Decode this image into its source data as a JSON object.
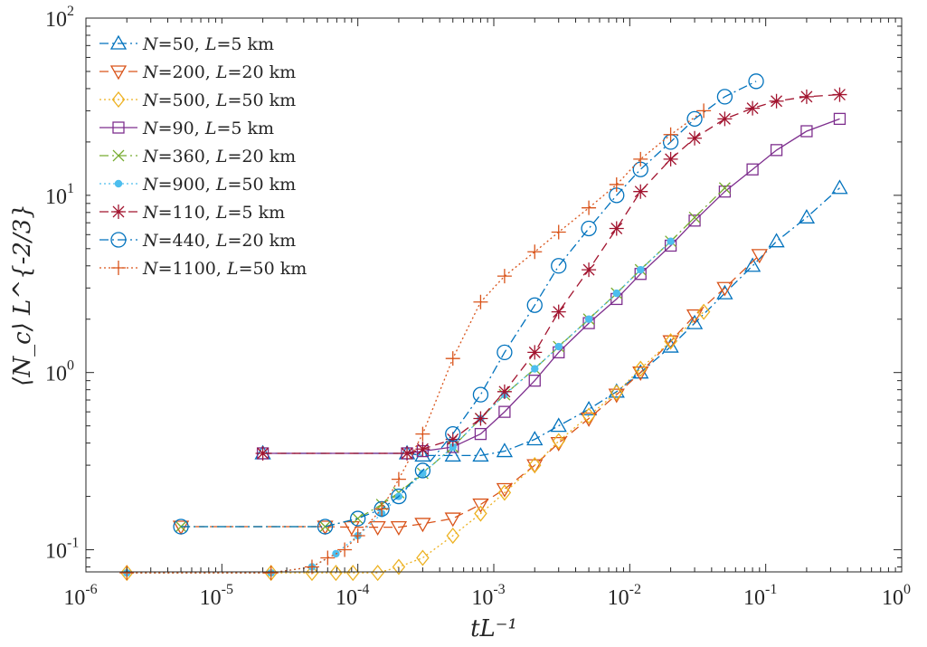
{
  "chart_data": {
    "type": "scatter",
    "title": "",
    "xlabel": "tL⁻¹",
    "ylabel": "⟨N_c⟩ L^{-2/3}",
    "xscale": "log",
    "yscale": "log",
    "xlim": [
      1e-06,
      1
    ],
    "ylim": [
      0.075,
      100
    ],
    "grid": false,
    "legend_position": "top-left",
    "x_ticks": [
      {
        "base": "10",
        "exp": "-6",
        "value": 1e-06
      },
      {
        "base": "10",
        "exp": "-5",
        "value": 1e-05
      },
      {
        "base": "10",
        "exp": "-4",
        "value": 0.0001
      },
      {
        "base": "10",
        "exp": "-3",
        "value": 0.001
      },
      {
        "base": "10",
        "exp": "-2",
        "value": 0.01
      },
      {
        "base": "10",
        "exp": "-1",
        "value": 0.1
      },
      {
        "base": "10",
        "exp": "0",
        "value": 1
      }
    ],
    "y_ticks": [
      {
        "label": "10",
        "exp": "-1",
        "value": 0.1
      },
      {
        "label": "10",
        "exp": "0",
        "value": 1
      },
      {
        "label": "10",
        "exp": "1",
        "value": 10
      },
      {
        "label": "10",
        "exp": "2",
        "value": 100
      }
    ],
    "series": [
      {
        "name": "N=50, L=5 km",
        "legend_parts": [
          "N",
          "=50, ",
          "L",
          "=5 km"
        ],
        "color": "#0072BD",
        "marker": "triangle-up",
        "line": "dash-dot",
        "x": [
          2e-05,
          0.00023,
          0.0003,
          0.0005,
          0.0008,
          0.0012,
          0.002,
          0.003,
          0.005,
          0.008,
          0.012,
          0.02,
          0.03,
          0.05,
          0.08,
          0.12,
          0.2,
          0.35
        ],
        "y": [
          0.35,
          0.35,
          0.34,
          0.34,
          0.34,
          0.36,
          0.42,
          0.5,
          0.62,
          0.78,
          1.0,
          1.4,
          1.9,
          2.8,
          4.0,
          5.5,
          7.5,
          11
        ]
      },
      {
        "name": "N=200, L=20 km",
        "legend_parts": [
          "N",
          "=200, ",
          "L",
          "=20 km"
        ],
        "color": "#D95319",
        "marker": "triangle-down",
        "line": "dashed",
        "x": [
          5e-06,
          5.75e-05,
          9e-05,
          0.00014,
          0.0002,
          0.0003,
          0.0005,
          0.0008,
          0.0012,
          0.002,
          0.003,
          0.005,
          0.008,
          0.012,
          0.02,
          0.03,
          0.05,
          0.09
        ],
        "y": [
          0.135,
          0.135,
          0.134,
          0.134,
          0.134,
          0.14,
          0.15,
          0.18,
          0.22,
          0.3,
          0.4,
          0.55,
          0.75,
          1.0,
          1.5,
          2.1,
          3.0,
          4.6
        ]
      },
      {
        "name": "N=500, L=50 km",
        "legend_parts": [
          "N",
          "=500, ",
          "L",
          "=50 km"
        ],
        "color": "#EDB120",
        "marker": "diamond",
        "line": "dotted",
        "x": [
          2e-06,
          2.3e-05,
          4.6e-05,
          6.9e-05,
          9.2e-05,
          0.00014,
          0.0002,
          0.0003,
          0.0005,
          0.0008,
          0.0012,
          0.002,
          0.003,
          0.005,
          0.008,
          0.012,
          0.02,
          0.035
        ],
        "y": [
          0.074,
          0.074,
          0.074,
          0.074,
          0.074,
          0.074,
          0.08,
          0.09,
          0.12,
          0.16,
          0.21,
          0.3,
          0.41,
          0.57,
          0.77,
          1.05,
          1.5,
          2.2
        ]
      },
      {
        "name": "N=90, L=5 km",
        "legend_parts": [
          "N",
          "=90, ",
          "L",
          "=5 km"
        ],
        "color": "#7E2F8E",
        "marker": "square",
        "line": "solid",
        "x": [
          2e-05,
          0.00023,
          0.0003,
          0.0005,
          0.0008,
          0.0012,
          0.002,
          0.003,
          0.005,
          0.008,
          0.012,
          0.02,
          0.03,
          0.05,
          0.08,
          0.12,
          0.2,
          0.35
        ],
        "y": [
          0.35,
          0.35,
          0.36,
          0.38,
          0.45,
          0.6,
          0.9,
          1.3,
          1.9,
          2.6,
          3.6,
          5.2,
          7.2,
          10.5,
          14,
          18,
          23,
          27
        ]
      },
      {
        "name": "N=360, L=20 km",
        "legend_parts": [
          "N",
          "=360, ",
          "L",
          "=20 km"
        ],
        "color": "#77AC30",
        "marker": "x",
        "line": "dash-dot",
        "x": [
          5e-06,
          5.75e-05,
          0.0001,
          0.00015,
          0.0002,
          0.0003,
          0.0005,
          0.0008,
          0.0012,
          0.002,
          0.003,
          0.005,
          0.008,
          0.012,
          0.02,
          0.03,
          0.05
        ],
        "y": [
          0.135,
          0.135,
          0.15,
          0.18,
          0.21,
          0.27,
          0.38,
          0.55,
          0.75,
          1.05,
          1.4,
          2.0,
          2.8,
          3.8,
          5.5,
          7.5,
          11
        ]
      },
      {
        "name": "N=900, L=50 km",
        "legend_parts": [
          "N",
          "=900, ",
          "L",
          "=50 km"
        ],
        "color": "#4DBEEE",
        "marker": "dot",
        "line": "dotted",
        "x": [
          2e-06,
          2.3e-05,
          4.6e-05,
          6.9e-05,
          0.0001,
          0.00015,
          0.0002,
          0.0003,
          0.0005,
          0.0008,
          0.0012,
          0.002,
          0.003,
          0.005,
          0.008,
          0.012,
          0.02
        ],
        "y": [
          0.074,
          0.074,
          0.08,
          0.095,
          0.12,
          0.16,
          0.2,
          0.27,
          0.38,
          0.55,
          0.75,
          1.05,
          1.4,
          2.0,
          2.8,
          3.8,
          5.5
        ]
      },
      {
        "name": "N=110, L=5 km",
        "legend_parts": [
          "N",
          "=110, ",
          "L",
          "=5 km"
        ],
        "color": "#A2142F",
        "marker": "asterisk",
        "line": "dashed",
        "x": [
          2e-05,
          0.00023,
          0.0003,
          0.0005,
          0.0008,
          0.0012,
          0.002,
          0.003,
          0.005,
          0.008,
          0.012,
          0.02,
          0.03,
          0.05,
          0.08,
          0.12,
          0.2,
          0.35
        ],
        "y": [
          0.35,
          0.35,
          0.37,
          0.42,
          0.55,
          0.78,
          1.3,
          2.2,
          3.8,
          6.5,
          10.5,
          16,
          21,
          27,
          31,
          34,
          36,
          37
        ]
      },
      {
        "name": "N=440, L=20 km",
        "legend_parts": [
          "N",
          "=440, ",
          "L",
          "=20 km"
        ],
        "color": "#0072BD",
        "marker": "circle",
        "line": "dash-dot",
        "x": [
          5e-06,
          5.75e-05,
          0.0001,
          0.00015,
          0.0002,
          0.0003,
          0.0005,
          0.0008,
          0.0012,
          0.002,
          0.003,
          0.005,
          0.008,
          0.012,
          0.02,
          0.03,
          0.05,
          0.085
        ],
        "y": [
          0.135,
          0.135,
          0.15,
          0.17,
          0.2,
          0.28,
          0.45,
          0.75,
          1.3,
          2.4,
          4.0,
          6.5,
          10,
          14,
          20,
          27,
          36,
          44
        ]
      },
      {
        "name": "N=1100, L=50 km",
        "legend_parts": [
          "N",
          "=1100, ",
          "L",
          "=50 km"
        ],
        "color": "#D95319",
        "marker": "plus",
        "line": "dotted",
        "x": [
          2e-06,
          2.3e-05,
          4.6e-05,
          6e-05,
          8e-05,
          0.0001,
          0.00015,
          0.0002,
          0.0003,
          0.0005,
          0.0008,
          0.0012,
          0.002,
          0.003,
          0.005,
          0.008,
          0.012,
          0.02,
          0.035
        ],
        "y": [
          0.074,
          0.074,
          0.08,
          0.09,
          0.1,
          0.12,
          0.17,
          0.25,
          0.45,
          1.2,
          2.5,
          3.5,
          4.8,
          6.2,
          8.5,
          11.5,
          16,
          22,
          30
        ]
      }
    ]
  }
}
